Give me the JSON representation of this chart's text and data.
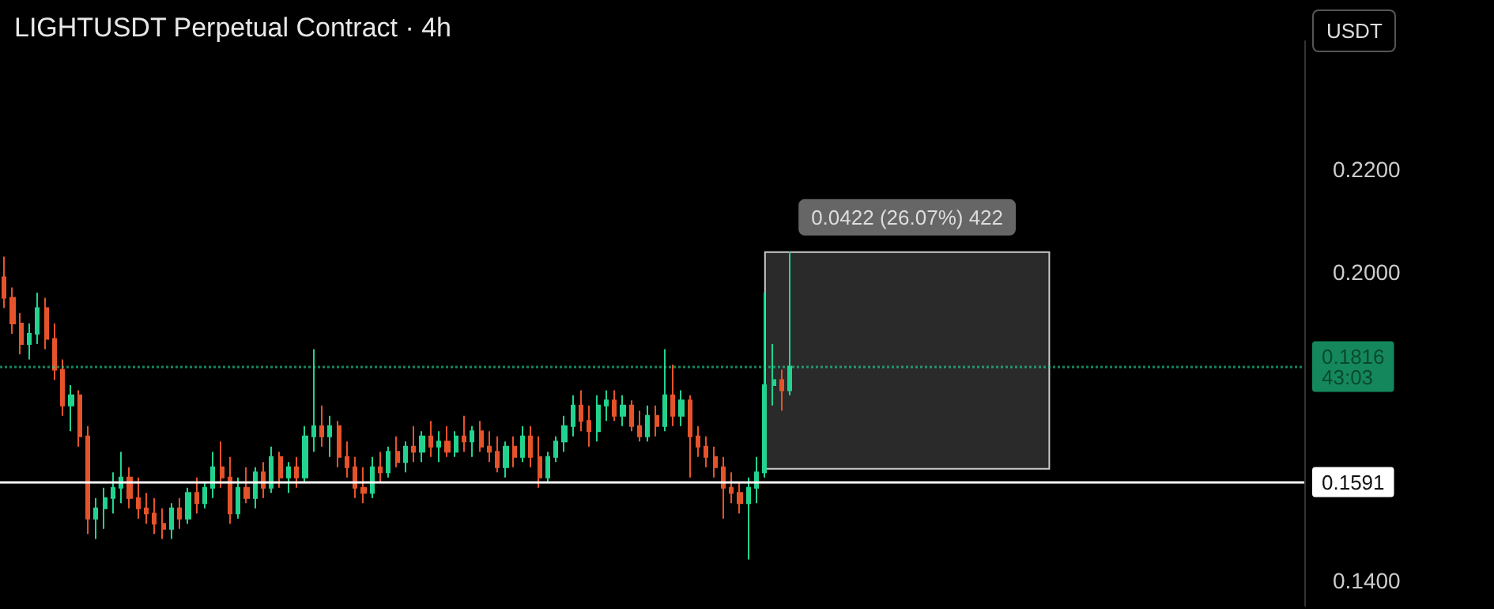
{
  "chart_data": {
    "type": "candlestick",
    "title": "LIGHTUSDT Perpetual Contract · 4h",
    "categories": [
      null,
      null,
      null,
      null,
      null,
      null,
      null,
      null,
      null,
      null,
      null,
      null,
      null,
      null,
      null,
      null,
      null,
      null,
      null,
      null,
      null,
      null,
      null,
      null,
      null,
      null,
      null,
      null,
      null,
      null,
      null,
      null,
      null,
      null,
      null,
      null,
      null,
      null,
      null,
      null,
      null,
      null,
      null,
      null,
      null,
      null,
      null,
      null,
      null,
      null,
      null,
      null,
      null,
      null,
      null,
      null,
      null,
      null,
      null,
      null,
      null,
      null,
      null,
      null,
      null,
      null,
      null,
      null,
      null,
      null,
      null,
      null,
      null,
      null,
      null,
      null,
      null,
      null,
      null,
      null,
      null,
      null,
      null,
      null,
      null,
      null,
      null,
      null,
      null,
      null,
      null,
      null,
      null,
      null,
      null,
      null,
      null,
      null,
      null,
      null,
      null,
      null,
      null,
      null,
      null,
      null,
      null,
      null,
      null,
      null,
      null,
      null,
      null,
      null,
      null,
      null,
      null,
      null,
      null,
      null,
      null,
      null,
      null,
      null,
      null,
      null,
      null,
      null,
      null,
      null,
      null,
      null,
      null,
      null,
      null,
      null,
      null,
      null,
      null,
      null,
      null,
      null,
      null,
      null,
      null,
      null,
      null,
      null,
      null,
      null,
      null,
      null,
      null,
      null,
      null,
      null
    ],
    "ohlc": [
      [
        0.199,
        0.203,
        0.193,
        0.195
      ],
      [
        0.195,
        0.197,
        0.188,
        0.19
      ],
      [
        0.19,
        0.192,
        0.184,
        0.186
      ],
      [
        0.186,
        0.19,
        0.183,
        0.188
      ],
      [
        0.188,
        0.196,
        0.186,
        0.193
      ],
      [
        0.193,
        0.195,
        0.185,
        0.187
      ],
      [
        0.187,
        0.19,
        0.179,
        0.181
      ],
      [
        0.181,
        0.183,
        0.172,
        0.174
      ],
      [
        0.174,
        0.178,
        0.169,
        0.176
      ],
      [
        0.176,
        0.177,
        0.166,
        0.168
      ],
      [
        0.168,
        0.17,
        0.149,
        0.152
      ],
      [
        0.152,
        0.156,
        0.148,
        0.154
      ],
      [
        0.154,
        0.158,
        0.15,
        0.156
      ],
      [
        0.156,
        0.161,
        0.153,
        0.158
      ],
      [
        0.158,
        0.165,
        0.155,
        0.16
      ],
      [
        0.16,
        0.162,
        0.154,
        0.156
      ],
      [
        0.156,
        0.16,
        0.152,
        0.154
      ],
      [
        0.154,
        0.157,
        0.151,
        0.153
      ],
      [
        0.153,
        0.156,
        0.149,
        0.151
      ],
      [
        0.151,
        0.154,
        0.148,
        0.15
      ],
      [
        0.15,
        0.155,
        0.148,
        0.154
      ],
      [
        0.154,
        0.156,
        0.15,
        0.152
      ],
      [
        0.152,
        0.158,
        0.151,
        0.157
      ],
      [
        0.157,
        0.16,
        0.153,
        0.155
      ],
      [
        0.155,
        0.159,
        0.154,
        0.158
      ],
      [
        0.158,
        0.165,
        0.156,
        0.162
      ],
      [
        0.162,
        0.167,
        0.158,
        0.16
      ],
      [
        0.16,
        0.164,
        0.151,
        0.153
      ],
      [
        0.153,
        0.16,
        0.152,
        0.158
      ],
      [
        0.158,
        0.162,
        0.155,
        0.156
      ],
      [
        0.156,
        0.162,
        0.154,
        0.161
      ],
      [
        0.161,
        0.163,
        0.156,
        0.158
      ],
      [
        0.158,
        0.166,
        0.157,
        0.164
      ],
      [
        0.164,
        0.165,
        0.158,
        0.16
      ],
      [
        0.16,
        0.163,
        0.157,
        0.162
      ],
      [
        0.162,
        0.164,
        0.158,
        0.16
      ],
      [
        0.16,
        0.17,
        0.159,
        0.168
      ],
      [
        0.168,
        0.185,
        0.165,
        0.17
      ],
      [
        0.17,
        0.174,
        0.166,
        0.168
      ],
      [
        0.168,
        0.172,
        0.164,
        0.17
      ],
      [
        0.17,
        0.171,
        0.162,
        0.164
      ],
      [
        0.164,
        0.167,
        0.16,
        0.162
      ],
      [
        0.162,
        0.164,
        0.156,
        0.158
      ],
      [
        0.158,
        0.162,
        0.155,
        0.157
      ],
      [
        0.157,
        0.164,
        0.156,
        0.162
      ],
      [
        0.162,
        0.165,
        0.159,
        0.161
      ],
      [
        0.161,
        0.166,
        0.16,
        0.165
      ],
      [
        0.165,
        0.168,
        0.162,
        0.163
      ],
      [
        0.163,
        0.167,
        0.161,
        0.166
      ],
      [
        0.166,
        0.17,
        0.163,
        0.165
      ],
      [
        0.165,
        0.169,
        0.163,
        0.168
      ],
      [
        0.168,
        0.171,
        0.164,
        0.166
      ],
      [
        0.166,
        0.169,
        0.163,
        0.167
      ],
      [
        0.167,
        0.17,
        0.164,
        0.165
      ],
      [
        0.165,
        0.169,
        0.164,
        0.168
      ],
      [
        0.168,
        0.172,
        0.165,
        0.167
      ],
      [
        0.167,
        0.17,
        0.164,
        0.169
      ],
      [
        0.169,
        0.171,
        0.165,
        0.166
      ],
      [
        0.166,
        0.169,
        0.163,
        0.165
      ],
      [
        0.165,
        0.168,
        0.161,
        0.162
      ],
      [
        0.162,
        0.167,
        0.16,
        0.166
      ],
      [
        0.166,
        0.168,
        0.162,
        0.164
      ],
      [
        0.164,
        0.17,
        0.163,
        0.168
      ],
      [
        0.168,
        0.17,
        0.162,
        0.164
      ],
      [
        0.164,
        0.168,
        0.158,
        0.16
      ],
      [
        0.16,
        0.165,
        0.159,
        0.164
      ],
      [
        0.164,
        0.168,
        0.163,
        0.167
      ],
      [
        0.167,
        0.172,
        0.165,
        0.17
      ],
      [
        0.17,
        0.176,
        0.168,
        0.174
      ],
      [
        0.174,
        0.177,
        0.169,
        0.171
      ],
      [
        0.171,
        0.174,
        0.166,
        0.169
      ],
      [
        0.169,
        0.176,
        0.167,
        0.174
      ],
      [
        0.174,
        0.177,
        0.171,
        0.175
      ],
      [
        0.175,
        0.177,
        0.171,
        0.172
      ],
      [
        0.172,
        0.176,
        0.17,
        0.174
      ],
      [
        0.174,
        0.175,
        0.169,
        0.17
      ],
      [
        0.17,
        0.173,
        0.167,
        0.168
      ],
      [
        0.168,
        0.174,
        0.167,
        0.172
      ],
      [
        0.172,
        0.174,
        0.168,
        0.17
      ],
      [
        0.17,
        0.185,
        0.169,
        0.176
      ],
      [
        0.176,
        0.182,
        0.17,
        0.172
      ],
      [
        0.172,
        0.177,
        0.17,
        0.175
      ],
      [
        0.175,
        0.176,
        0.16,
        0.168
      ],
      [
        0.168,
        0.17,
        0.164,
        0.166
      ],
      [
        0.166,
        0.168,
        0.162,
        0.164
      ],
      [
        0.164,
        0.166,
        0.16,
        0.162
      ],
      [
        0.162,
        0.164,
        0.152,
        0.158
      ],
      [
        0.158,
        0.161,
        0.155,
        0.157
      ],
      [
        0.157,
        0.159,
        0.153,
        0.155
      ],
      [
        0.155,
        0.16,
        0.144,
        0.158
      ],
      [
        0.158,
        0.164,
        0.155,
        0.161
      ],
      [
        0.161,
        0.196,
        0.16,
        0.178
      ],
      [
        0.178,
        0.186,
        0.174,
        0.179
      ],
      [
        0.179,
        0.181,
        0.173,
        0.177
      ],
      [
        0.177,
        0.204,
        0.176,
        0.1816
      ],
      null,
      null,
      null,
      null,
      null,
      null,
      null,
      null,
      null,
      null,
      null,
      null,
      null,
      null,
      null,
      null,
      null,
      null,
      null,
      null,
      null,
      null,
      null,
      null,
      null,
      null,
      null,
      null,
      null,
      null,
      null,
      null,
      null,
      null,
      null,
      null,
      null,
      null,
      null,
      null,
      null,
      null,
      null,
      null,
      null,
      null,
      null,
      null,
      null,
      null,
      null,
      null,
      null,
      null,
      null,
      null,
      null,
      null,
      null,
      null,
      null
    ],
    "ylim": [
      0.135,
      0.245
    ],
    "yticks": [
      {
        "value": 0.14,
        "label": "0.1400"
      },
      {
        "value": 0.2,
        "label": "0.2000"
      },
      {
        "value": 0.22,
        "label": "0.2200"
      }
    ],
    "tick_labels": "y",
    "grid": false,
    "ref_lines": [
      {
        "axis": "y",
        "value": 0.1591,
        "label": "0.1591",
        "color": "#ffffff"
      },
      {
        "axis": "y",
        "value": 0.1816,
        "label": "0.1816\n43:03",
        "color": "#22e39a",
        "line_style": "dotted"
      }
    ],
    "bands": [
      {
        "axis": "y",
        "from": 0.1617,
        "to": 0.2039,
        "label": "0.0422 (26.07%) 422",
        "color": "#2a2a2a"
      }
    ],
    "annotations": [
      "USDT"
    ]
  }
}
